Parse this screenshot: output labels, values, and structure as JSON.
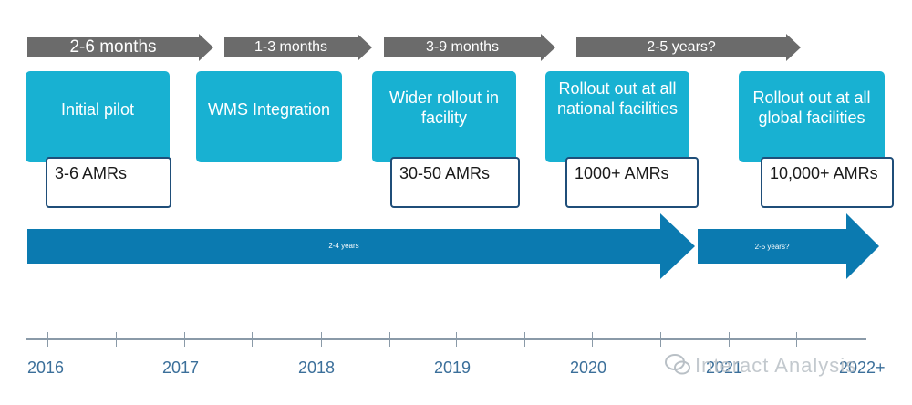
{
  "durations": [
    "2-6 months",
    "1-3 months",
    "3-9 months",
    "2-5 years?"
  ],
  "phases": [
    "Initial pilot",
    "WMS Integration",
    "Wider rollout in facility",
    "Rollout out at all national facilities",
    "Rollout out at all global facilities"
  ],
  "amrs": [
    "3-6 AMRs",
    "30-50 AMRs",
    "1000+ AMRs",
    "10,000+ AMRs"
  ],
  "spans": [
    "2-4 years",
    "2-5 years?"
  ],
  "years": [
    "2016",
    "2017",
    "2018",
    "2019",
    "2020",
    "2021",
    "2022+"
  ],
  "watermark": "Interact Analysis",
  "colors": {
    "phase": "#18b1d2",
    "bigArrow": "#0b7ab0",
    "grayArrow": "#6b6b6b",
    "year": "#3b6f9a",
    "amrBorder": "#1f4e79"
  }
}
